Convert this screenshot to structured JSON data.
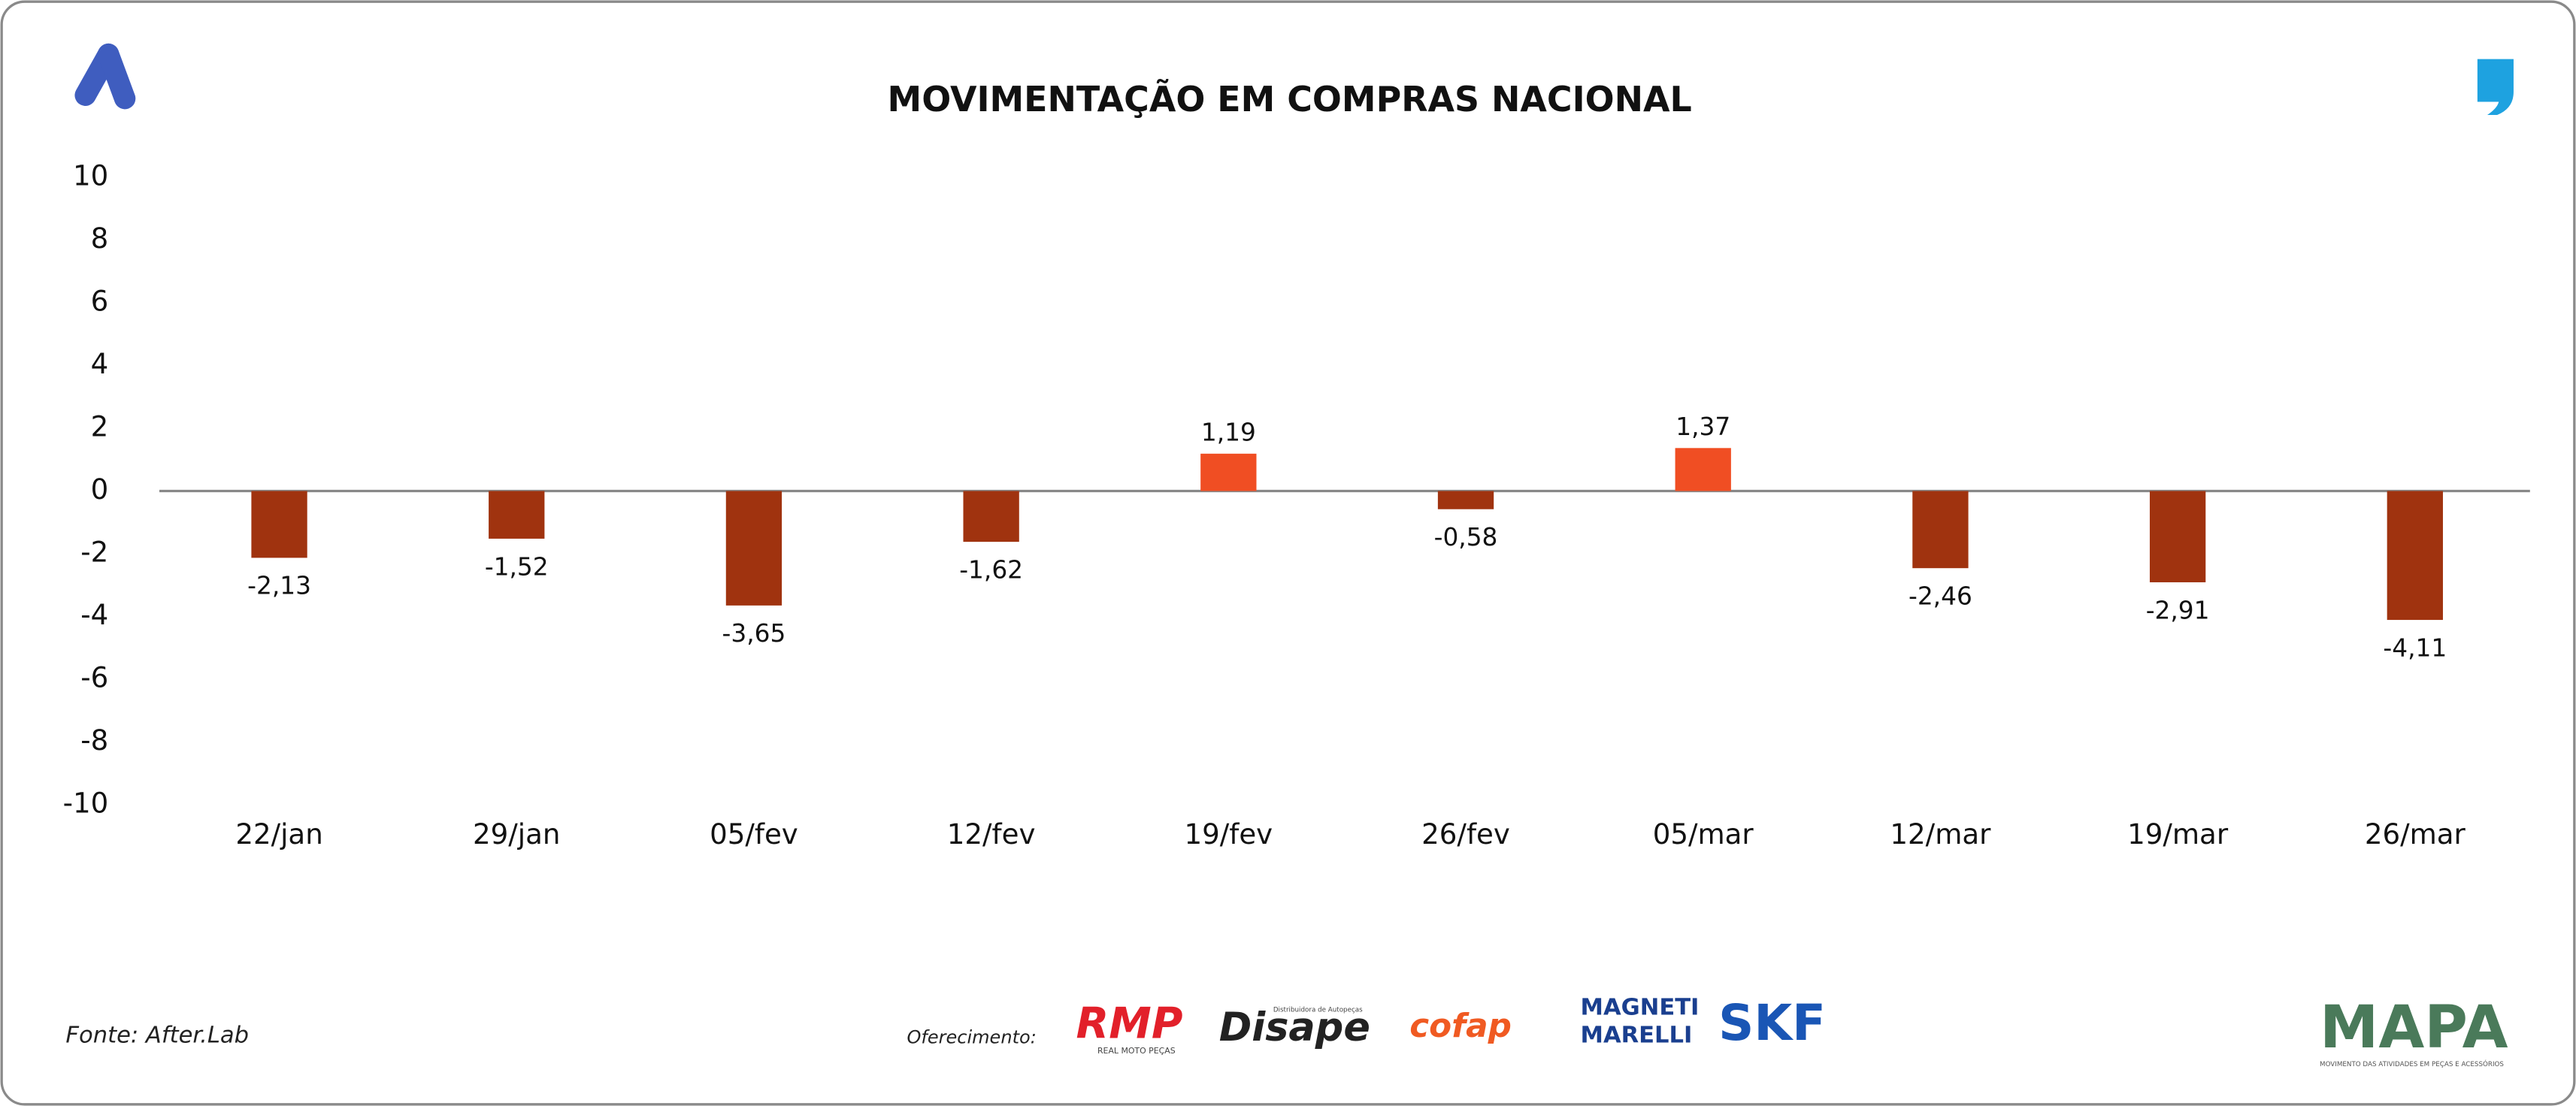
{
  "chart_data": {
    "type": "bar",
    "title": "MOVIMENTAÇÃO EM COMPRAS NACIONAL",
    "categories": [
      "22/jan",
      "29/jan",
      "05/fev",
      "12/fev",
      "19/fev",
      "26/fev",
      "05/mar",
      "12/mar",
      "19/mar",
      "26/mar"
    ],
    "values": [
      -2.13,
      -1.52,
      -3.65,
      -1.62,
      1.19,
      -0.58,
      1.37,
      -2.46,
      -2.91,
      -4.11
    ],
    "value_labels": [
      "-2,13",
      "-1,52",
      "-3,65",
      "-1,62",
      "1,19",
      "-0,58",
      "1,37",
      "-2,46",
      "-2,91",
      "-4,11"
    ],
    "colors": {
      "negative": "#a0330f",
      "positive": "#f04e23"
    },
    "ylim": [
      -10,
      10
    ],
    "yticks": [
      -10,
      -8,
      -6,
      -4,
      -2,
      0,
      2,
      4,
      6,
      8,
      10
    ],
    "grid": false
  },
  "footer": {
    "source": "Fonte: After.Lab",
    "sponsor_label": "Oferecimento:",
    "sponsors": [
      "RMP",
      "REAL MOTO PEÇAS",
      "Disape",
      "Distribuidora de Autopeças",
      "cofap",
      "MAGNETI",
      "MARELLI",
      "SKF"
    ],
    "brand": "MAPA",
    "brand_tagline": "MOVIMENTO DAS ATIVIDADES EM PEÇAS E ACESSÓRIOS"
  }
}
